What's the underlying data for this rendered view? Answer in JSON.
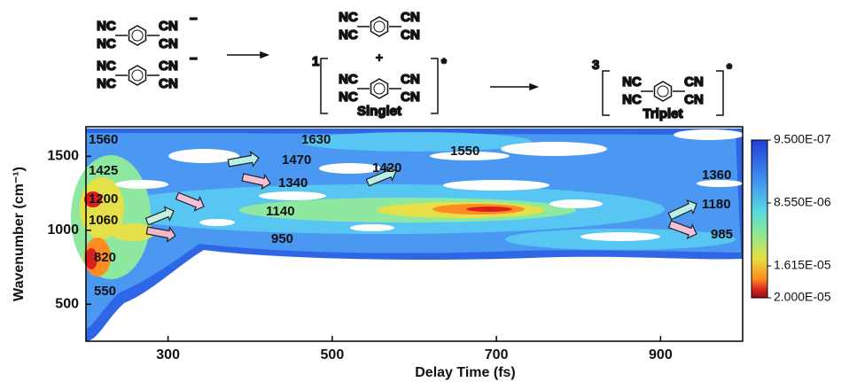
{
  "chart_data": {
    "type": "contour",
    "xlabel": "Delay Time (fs)",
    "ylabel": "Wavenumber (cm⁻¹)",
    "xlim": [
      200,
      1000
    ],
    "xticks": [
      300,
      500,
      700,
      900
    ],
    "ylim": [
      250,
      1700
    ],
    "yticks": [
      500,
      1000,
      1500
    ],
    "clim": [
      9.5e-07,
      2e-05
    ],
    "colorbar_ticks": [
      {
        "value": 9.5e-07,
        "label": "9.500E-07"
      },
      {
        "value": 8.55e-06,
        "label": "8.550E-06"
      },
      {
        "value": 1.615e-05,
        "label": "1.615E-05"
      },
      {
        "value": 2e-05,
        "label": "2.000E-05"
      }
    ],
    "peak_labels": [
      1560,
      1425,
      1200,
      1060,
      820,
      550,
      1630,
      1470,
      1340,
      1140,
      950,
      1550,
      1420,
      1360,
      1180,
      985
    ],
    "scheme": {
      "nc": "NC",
      "cn": "CN",
      "minus": "−",
      "plus": "+",
      "star": "*",
      "singlet_mult": "1",
      "triplet_mult": "3",
      "singlet": "Singlet",
      "triplet": "Triplet"
    }
  }
}
